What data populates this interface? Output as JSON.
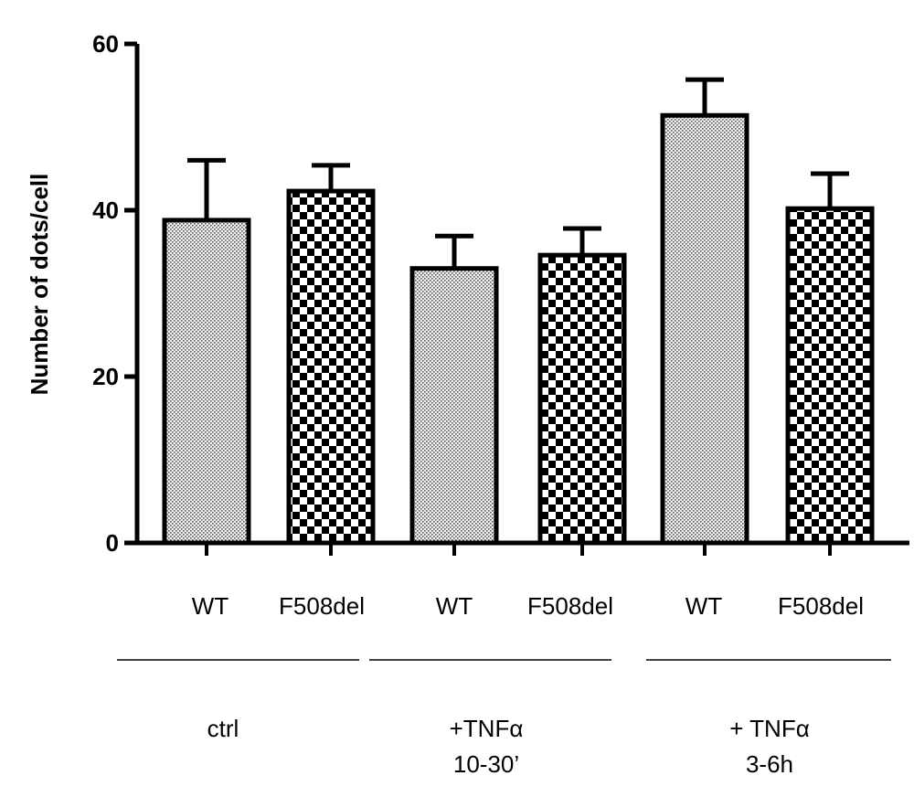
{
  "chart_data": {
    "type": "bar",
    "ylabel": "Number of dots/cell",
    "ylim": [
      0,
      60
    ],
    "yticks": [
      0,
      20,
      40,
      60
    ],
    "yticks_labels": [
      "0",
      "20",
      "40",
      "60"
    ],
    "grid": false,
    "bars": [
      {
        "label": "WT",
        "group": "ctrl",
        "value": 38.8,
        "error": 7.2,
        "pattern": "dots"
      },
      {
        "label": "F508del",
        "group": "ctrl",
        "value": 42.3,
        "error": 3.1,
        "pattern": "checker"
      },
      {
        "label": "WT",
        "group": "+TNFα 10-30’",
        "value": 33.0,
        "error": 3.9,
        "pattern": "dots"
      },
      {
        "label": "F508del",
        "group": "+TNFα 10-30’",
        "value": 34.6,
        "error": 3.2,
        "pattern": "checker"
      },
      {
        "label": "WT",
        "group": "+ TNFα 3-6h",
        "value": 51.4,
        "error": 4.3,
        "pattern": "dots"
      },
      {
        "label": "F508del",
        "group": "+ TNFα 3-6h",
        "value": 40.2,
        "error": 4.2,
        "pattern": "checker"
      }
    ],
    "groups": [
      {
        "lines": [
          "ctrl"
        ]
      },
      {
        "lines": [
          "+TNFα",
          "10-30’"
        ]
      },
      {
        "lines": [
          "+ TNFα",
          "3-6h"
        ]
      }
    ]
  }
}
